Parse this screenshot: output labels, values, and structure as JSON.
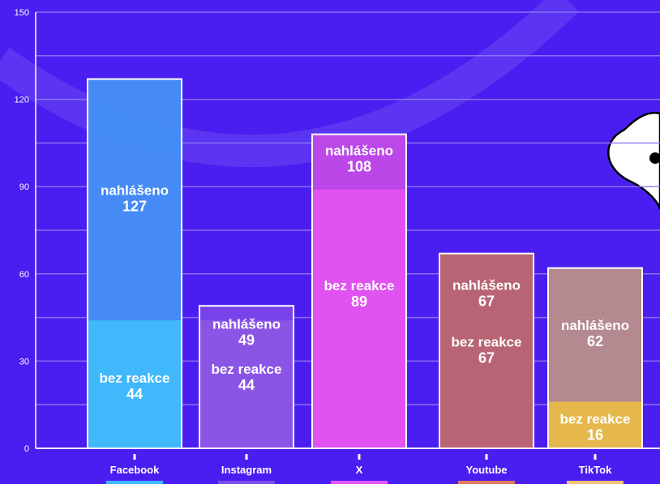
{
  "chart_data": {
    "type": "bar",
    "stacked_overlay": true,
    "categories": [
      "Facebook",
      "Instagram",
      "X",
      "Youtube",
      "TikTok"
    ],
    "series": [
      {
        "name": "nahlášeno",
        "values": [
          127,
          49,
          108,
          67,
          62
        ]
      },
      {
        "name": "bez reakce",
        "values": [
          44,
          44,
          89,
          67,
          16
        ]
      }
    ],
    "value_label_text": {
      "reported": "nahlášeno",
      "no_reaction": "bez reakce"
    },
    "ylim": [
      0,
      150
    ],
    "yticks": [
      0,
      30,
      60,
      90,
      120,
      150
    ],
    "grid": true,
    "title": "",
    "xlabel": "",
    "ylabel": "",
    "colors": {
      "background": "#4a1ef0",
      "Facebook": {
        "reported": "#4590f4",
        "no_reaction": "#41b8fb",
        "swatch": "#3fb9fb"
      },
      "Instagram": {
        "reported": "#7a45ea",
        "no_reaction": "#8a55e5",
        "swatch": "#7d4ce8"
      },
      "X": {
        "reported": "#c24ae8",
        "no_reaction": "#e053f0",
        "swatch": "#e754f2"
      },
      "Youtube": {
        "reported": "#b25a8d",
        "no_reaction": "#b86474",
        "swatch": "#e4795e"
      },
      "TikTok": {
        "reported": "#bb8f8a",
        "no_reaction": "#e6b84c",
        "swatch": "#f0c07a"
      }
    }
  }
}
